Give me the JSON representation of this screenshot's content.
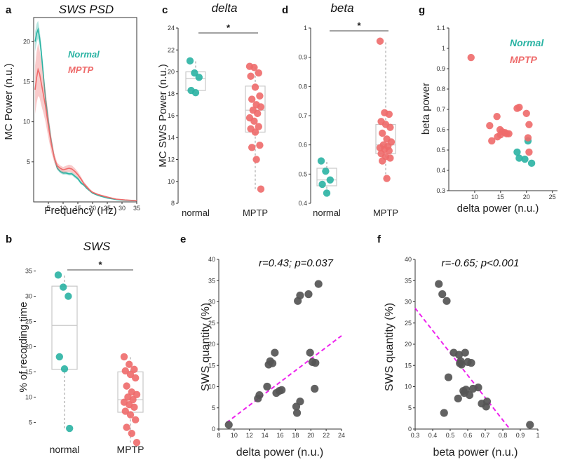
{
  "colors": {
    "normal": "#2ab3a3",
    "mptp": "#ee6a6a",
    "gray": "#555555",
    "fit": "#ee22ee"
  },
  "chart_data": [
    {
      "id": "a",
      "panel": "a",
      "type": "line",
      "title": "SWS PSD",
      "xlabel": "Frequency (Hz)",
      "ylabel": "MC Power (n.u.)",
      "xlim": [
        0,
        35
      ],
      "ylim": [
        0,
        23
      ],
      "xticks": [
        5,
        10,
        15,
        20,
        25,
        30,
        35
      ],
      "yticks": [
        5,
        10,
        15,
        20
      ],
      "legend": [
        "Normal",
        "MPTP"
      ],
      "series": [
        {
          "name": "Normal",
          "color": "normal",
          "x": [
            0.5,
            1,
            1.5,
            2,
            2.5,
            3,
            3.5,
            4,
            5,
            6,
            7,
            8,
            9,
            10,
            11,
            12,
            13,
            14,
            15,
            16,
            17,
            18,
            19,
            20,
            22,
            25,
            28,
            31,
            35
          ],
          "y": [
            20,
            21,
            21.5,
            20.5,
            19,
            17,
            15,
            13,
            10,
            7.5,
            5.5,
            4.2,
            3.8,
            3.6,
            3.6,
            3.5,
            3.5,
            3.2,
            2.9,
            2.4,
            2.1,
            1.7,
            1.4,
            1.1,
            0.8,
            0.5,
            0.3,
            0.2,
            0.15
          ],
          "err": [
            1.2,
            1.2,
            1.1,
            1.0,
            1.0,
            0.9,
            0.8,
            0.7,
            0.6,
            0.4,
            0.3,
            0.2,
            0.2,
            0.2,
            0.2,
            0.2,
            0.2,
            0.2,
            0.2,
            0.2,
            0.1,
            0.1,
            0.1,
            0.1,
            0.1,
            0.1,
            0.05,
            0.05,
            0.05
          ]
        },
        {
          "name": "MPTP",
          "color": "mptp",
          "x": [
            0.5,
            1,
            1.5,
            2,
            2.5,
            3,
            3.5,
            4,
            5,
            6,
            7,
            8,
            9,
            10,
            11,
            12,
            13,
            14,
            15,
            16,
            17,
            18,
            19,
            20,
            22,
            25,
            28,
            31,
            35
          ],
          "y": [
            14,
            15.5,
            16.5,
            16,
            15,
            14,
            13,
            12,
            9.5,
            7.2,
            5.5,
            4.5,
            4.2,
            4.0,
            4.1,
            4.2,
            4.1,
            3.8,
            3.4,
            2.9,
            2.3,
            1.9,
            1.5,
            1.2,
            0.9,
            0.6,
            0.35,
            0.25,
            0.15
          ],
          "err": [
            3.0,
            3.2,
            3.3,
            3.0,
            2.8,
            2.5,
            2.2,
            2.0,
            1.5,
            1.0,
            0.6,
            0.4,
            0.35,
            0.35,
            0.4,
            0.45,
            0.45,
            0.4,
            0.35,
            0.3,
            0.25,
            0.2,
            0.15,
            0.1,
            0.1,
            0.1,
            0.05,
            0.05,
            0.05
          ]
        }
      ]
    },
    {
      "id": "b",
      "panel": "b",
      "type": "box",
      "title": "SWS",
      "ylabel": "% of recording time",
      "ylim": [
        2,
        38
      ],
      "yticks": [
        5,
        10,
        15,
        20,
        25,
        30,
        35
      ],
      "categories": [
        "normal",
        "MPTP"
      ],
      "significance": "*",
      "groups": [
        {
          "name": "normal",
          "color": "normal",
          "box": [
            15.5,
            24.2,
            32.0
          ],
          "whisk": [
            3.8,
            34.2
          ],
          "points": [
            34.2,
            31.8,
            30.0,
            18.0,
            15.6,
            3.8
          ]
        },
        {
          "name": "MPTP",
          "color": "mptp",
          "box": [
            7.0,
            9.5,
            15.0
          ],
          "whisk": [
            1.0,
            18.0
          ],
          "points": [
            18.0,
            16.5,
            15.5,
            15.2,
            14.5,
            13.8,
            12.2,
            11.0,
            10.5,
            10.0,
            9.5,
            9.0,
            8.5,
            8.0,
            7.2,
            6.5,
            5.5,
            4.0,
            2.8,
            1.0
          ]
        }
      ]
    },
    {
      "id": "c",
      "panel": "c",
      "type": "box",
      "title": "delta",
      "ylabel": "MC SWS Power (n.u.)",
      "ylim": [
        8,
        24
      ],
      "yticks": [
        8,
        10,
        12,
        14,
        16,
        18,
        20,
        22,
        24
      ],
      "categories": [
        "normal",
        "MPTP"
      ],
      "significance": "*",
      "groups": [
        {
          "name": "normal",
          "color": "normal",
          "box": [
            18.3,
            19.4,
            20.0
          ],
          "whisk": [
            18.0,
            21.0
          ],
          "points": [
            21.0,
            19.9,
            19.5,
            18.3,
            18.1
          ]
        },
        {
          "name": "MPTP",
          "color": "mptp",
          "box": [
            14.5,
            16.5,
            18.7
          ],
          "whisk": [
            9.3,
            20.5
          ],
          "points": [
            20.5,
            20.4,
            19.9,
            19.6,
            18.6,
            17.8,
            17.5,
            17.0,
            16.8,
            16.5,
            16.2,
            15.8,
            15.5,
            15.0,
            14.8,
            14.5,
            13.3,
            13.1,
            12.0,
            9.3
          ]
        }
      ]
    },
    {
      "id": "d",
      "panel": "d",
      "type": "box",
      "title": "beta",
      "ylim": [
        0.4,
        1.0
      ],
      "yticks": [
        0.4,
        0.5,
        0.6,
        0.7,
        0.8,
        0.9,
        1.0
      ],
      "ytick_labels": [
        "0.4",
        "0.5",
        "0.6",
        "0.7",
        "0.8",
        "0.9",
        "1"
      ],
      "categories": [
        "normal",
        "MPTP"
      ],
      "significance": "*",
      "groups": [
        {
          "name": "normal",
          "color": "normal",
          "box": [
            0.46,
            0.48,
            0.52
          ],
          "whisk": [
            0.435,
            0.545
          ],
          "points": [
            0.545,
            0.51,
            0.48,
            0.465,
            0.435
          ]
        },
        {
          "name": "MPTP",
          "color": "mptp",
          "box": [
            0.57,
            0.6,
            0.67
          ],
          "whisk": [
            0.485,
            0.955
          ],
          "points": [
            0.955,
            0.71,
            0.705,
            0.68,
            0.67,
            0.66,
            0.64,
            0.62,
            0.61,
            0.6,
            0.595,
            0.59,
            0.585,
            0.58,
            0.57,
            0.56,
            0.555,
            0.545,
            0.485
          ]
        }
      ]
    },
    {
      "id": "g",
      "panel": "g",
      "type": "scatter",
      "xlabel": "delta power (n.u.)",
      "ylabel": "beta power",
      "xlim": [
        5,
        26
      ],
      "ylim": [
        0.3,
        1.1
      ],
      "xticks": [
        10,
        15,
        20,
        25
      ],
      "yticks": [
        0.3,
        0.4,
        0.5,
        0.6,
        0.7,
        0.8,
        0.9,
        1.0,
        1.1
      ],
      "ytick_labels": [
        "0.3",
        "0.4",
        "0.5",
        "0.6",
        "0.7",
        "0.8",
        "0.9",
        "1",
        "1.1"
      ],
      "legend": [
        "Normal",
        "MPTP"
      ],
      "series": [
        {
          "name": "Normal",
          "color": "normal",
          "x": [
            18.2,
            18.6,
            19.7,
            20.3,
            21.0
          ],
          "y": [
            0.49,
            0.46,
            0.455,
            0.545,
            0.435
          ]
        },
        {
          "name": "MPTP",
          "color": "mptp",
          "x": [
            9.3,
            12.9,
            13.3,
            14.3,
            14.4,
            14.9,
            15.0,
            15.3,
            15.9,
            16.2,
            16.6,
            18.2,
            18.6,
            20.0,
            20.3,
            20.5,
            20.5
          ],
          "y": [
            0.955,
            0.62,
            0.545,
            0.665,
            0.565,
            0.6,
            0.575,
            0.59,
            0.585,
            0.58,
            0.58,
            0.705,
            0.71,
            0.68,
            0.56,
            0.625,
            0.49
          ]
        }
      ]
    },
    {
      "id": "e",
      "panel": "e",
      "type": "scatter",
      "annotation": "r=0.43; p=0.037",
      "xlabel": "delta power (n.u.)",
      "ylabel": "SWS quantity (%)",
      "xlim": [
        8,
        24
      ],
      "ylim": [
        0,
        40
      ],
      "xticks": [
        8,
        10,
        12,
        14,
        16,
        18,
        20,
        22,
        24
      ],
      "yticks": [
        0,
        5,
        10,
        15,
        20,
        25,
        30,
        35,
        40
      ],
      "fit": {
        "x": [
          9.0,
          24.0
        ],
        "y": [
          1.5,
          22.0
        ]
      },
      "series": [
        {
          "name": "all",
          "color": "gray",
          "x": [
            9.3,
            13.1,
            13.3,
            14.3,
            14.5,
            14.7,
            15.0,
            15.3,
            15.5,
            15.9,
            16.2,
            18.1,
            18.2,
            18.3,
            18.6,
            19.7,
            19.9,
            20.2,
            20.5,
            20.6,
            21.0,
            18.6
          ],
          "y": [
            1.0,
            7.2,
            8.0,
            10.0,
            15.2,
            16.0,
            15.5,
            18.0,
            8.5,
            9.0,
            9.2,
            5.3,
            3.8,
            30.2,
            31.5,
            31.8,
            18.0,
            15.8,
            9.5,
            15.6,
            34.2,
            6.5
          ]
        }
      ]
    },
    {
      "id": "f",
      "panel": "f",
      "type": "scatter",
      "annotation": "r=-0.65; p<0.001",
      "xlabel": "beta power (n.u.)",
      "ylabel": "SWS quantity (%)",
      "xlim": [
        0.3,
        1.0
      ],
      "ylim": [
        0,
        40
      ],
      "xticks": [
        0.3,
        0.4,
        0.5,
        0.6,
        0.7,
        0.8,
        0.9,
        1.0
      ],
      "xtick_labels": [
        "0.3",
        "0.4",
        "0.5",
        "0.6",
        "0.7",
        "0.8",
        "0.9",
        "1"
      ],
      "yticks": [
        0,
        5,
        10,
        15,
        20,
        25,
        30,
        35,
        40
      ],
      "fit": {
        "x": [
          0.3,
          0.84
        ],
        "y": [
          28.5,
          0
        ]
      },
      "series": [
        {
          "name": "all",
          "color": "gray",
          "x": [
            0.435,
            0.455,
            0.48,
            0.49,
            0.465,
            0.52,
            0.55,
            0.555,
            0.56,
            0.565,
            0.575,
            0.58,
            0.585,
            0.59,
            0.6,
            0.61,
            0.62,
            0.63,
            0.66,
            0.68,
            0.705,
            0.71,
            0.955,
            0.545
          ],
          "y": [
            34.2,
            31.8,
            30.2,
            12.2,
            3.8,
            18.0,
            17.5,
            15.5,
            16.0,
            15.2,
            9.0,
            8.5,
            18.0,
            9.3,
            15.8,
            8.0,
            15.6,
            9.5,
            9.8,
            6.0,
            5.3,
            6.5,
            1.0,
            7.2
          ]
        }
      ]
    }
  ]
}
